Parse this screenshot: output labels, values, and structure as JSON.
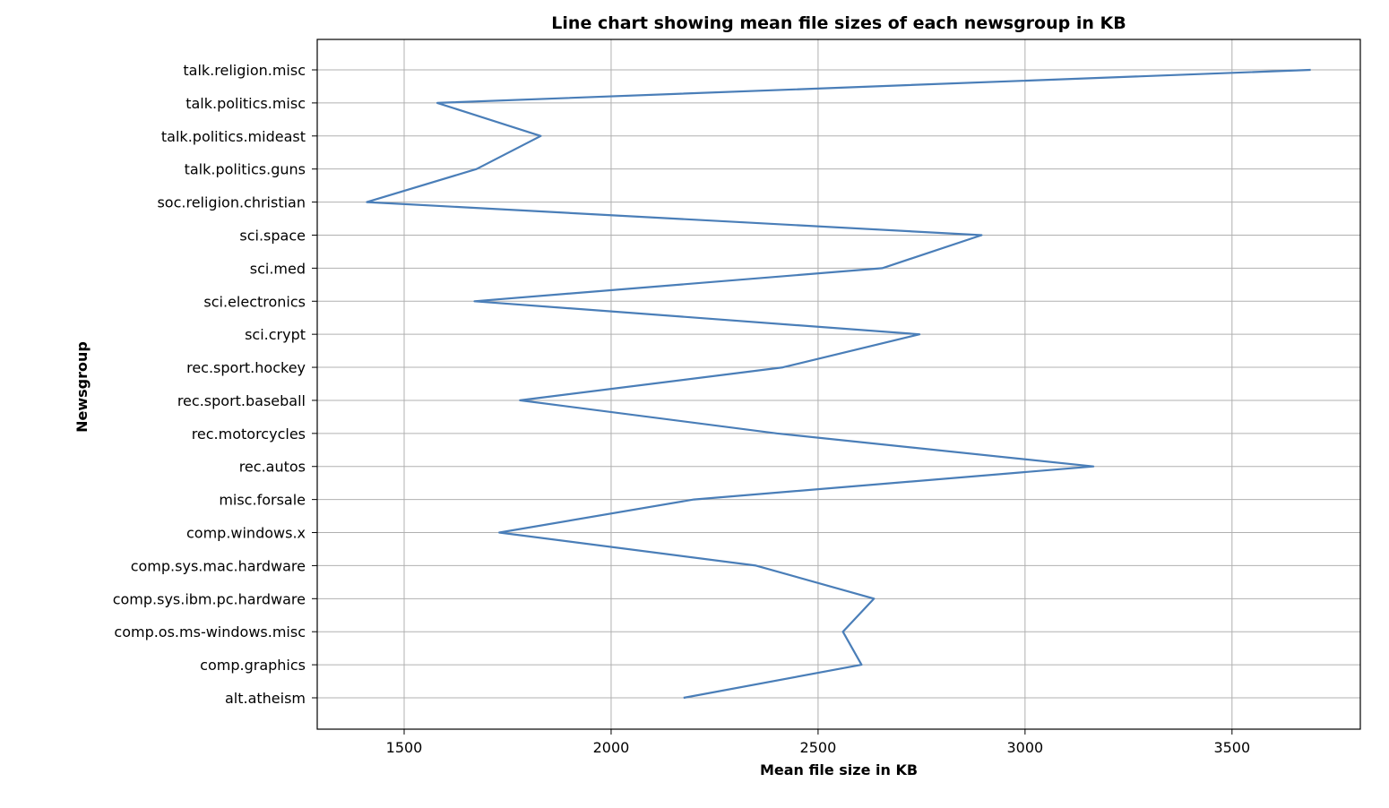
{
  "chart_data": {
    "type": "line",
    "title": "Line chart showing mean file sizes of each newsgroup in KB",
    "xlabel": "Mean file size in KB",
    "ylabel": "Newsgroup",
    "xlim": [
      1290,
      3810
    ],
    "xticks": [
      1500,
      2000,
      2500,
      3000,
      3500
    ],
    "grid": true,
    "categories": [
      "alt.atheism",
      "comp.graphics",
      "comp.os.ms-windows.misc",
      "comp.sys.ibm.pc.hardware",
      "comp.sys.mac.hardware",
      "comp.windows.x",
      "misc.forsale",
      "rec.autos",
      "rec.motorcycles",
      "rec.sport.baseball",
      "rec.sport.hockey",
      "sci.crypt",
      "sci.electronics",
      "sci.med",
      "sci.space",
      "soc.religion.christian",
      "talk.politics.guns",
      "talk.politics.mideast",
      "talk.politics.misc",
      "talk.religion.misc"
    ],
    "series": [
      {
        "color": "#4a7eb8",
        "values": [
          2175,
          2605,
          2560,
          2635,
          2350,
          1730,
          2200,
          3165,
          2400,
          1780,
          2415,
          2745,
          1670,
          2655,
          2895,
          1410,
          1675,
          1830,
          1580,
          3690
        ]
      }
    ]
  }
}
